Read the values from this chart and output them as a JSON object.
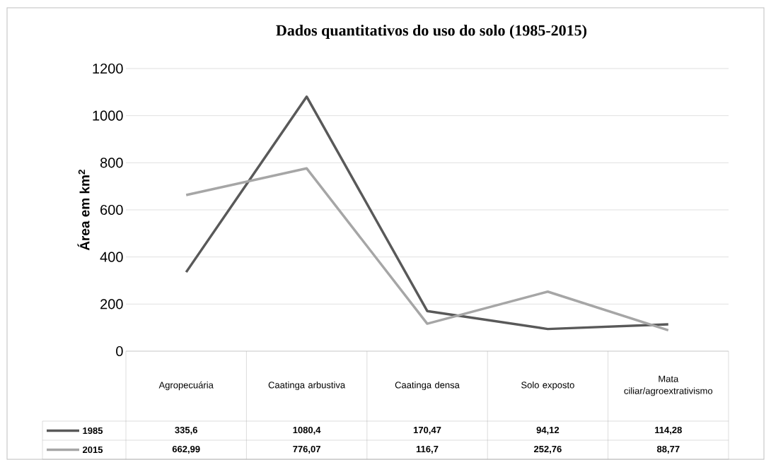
{
  "chart_data": {
    "type": "line",
    "title": "Dados quantitativos do uso do solo (1985-2015)",
    "ylabel": "Área em km$^{2}$",
    "categories": [
      "Agropecuária",
      "Caatinga arbustiva",
      "Caatinga densa",
      "Solo exposto",
      "Mata ciliar/agroextrativismo"
    ],
    "series": [
      {
        "name": "1985",
        "color": "#595959",
        "values": [
          335.6,
          1080.4,
          170.47,
          94.12,
          114.28
        ],
        "value_labels": [
          "335,6",
          "1080,4",
          "170,47",
          "94,12",
          "114,28"
        ]
      },
      {
        "name": "2015",
        "color": "#a6a6a6",
        "values": [
          662.99,
          776.07,
          116.7,
          252.76,
          88.77
        ],
        "value_labels": [
          "662,99",
          "776,07",
          "116,7",
          "252,76",
          "88,77"
        ]
      }
    ],
    "ylim": [
      0,
      1200
    ],
    "yticks": [
      0,
      200,
      400,
      600,
      800,
      1000,
      1200
    ],
    "grid": "y",
    "legend": "bottom",
    "marker": "none"
  }
}
